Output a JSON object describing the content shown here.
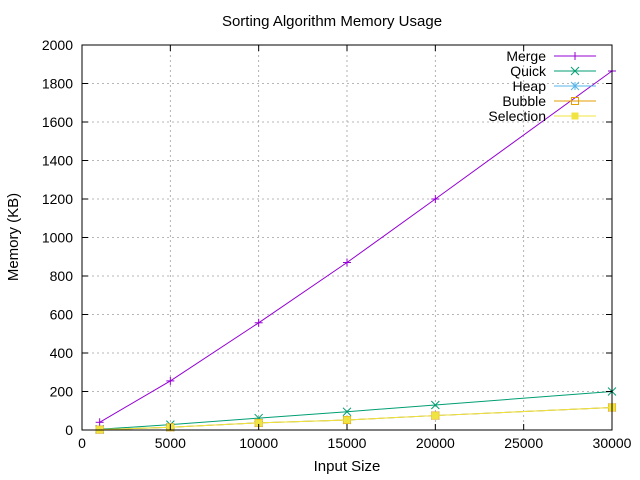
{
  "chart_data": {
    "type": "line",
    "title": "Sorting Algorithm Memory Usage",
    "xlabel": "Input Size",
    "ylabel": "Memory (KB)",
    "xlim": [
      0,
      30000
    ],
    "ylim": [
      0,
      2000
    ],
    "xticks": [
      0,
      5000,
      10000,
      15000,
      20000,
      25000,
      30000
    ],
    "yticks": [
      0,
      200,
      400,
      600,
      800,
      1000,
      1200,
      1400,
      1600,
      1800,
      2000
    ],
    "grid": true,
    "legend_position": "top-right",
    "x": [
      1000,
      5000,
      10000,
      15000,
      20000,
      30000
    ],
    "series": [
      {
        "name": "Merge",
        "color": "#9400d3",
        "marker": "plus",
        "values": [
          40,
          255,
          557,
          870,
          1200,
          1865
        ]
      },
      {
        "name": "Quick",
        "color": "#009e73",
        "marker": "cross",
        "values": [
          4,
          28,
          62,
          95,
          130,
          200
        ]
      },
      {
        "name": "Heap",
        "color": "#56b4e9",
        "marker": "star",
        "values": [
          2,
          14,
          37,
          52,
          75,
          117
        ]
      },
      {
        "name": "Bubble",
        "color": "#e69f00",
        "marker": "open-square",
        "values": [
          2,
          14,
          37,
          52,
          75,
          117
        ]
      },
      {
        "name": "Selection",
        "color": "#f0e442",
        "marker": "filled-square",
        "values": [
          2,
          14,
          37,
          52,
          75,
          117
        ]
      }
    ]
  }
}
